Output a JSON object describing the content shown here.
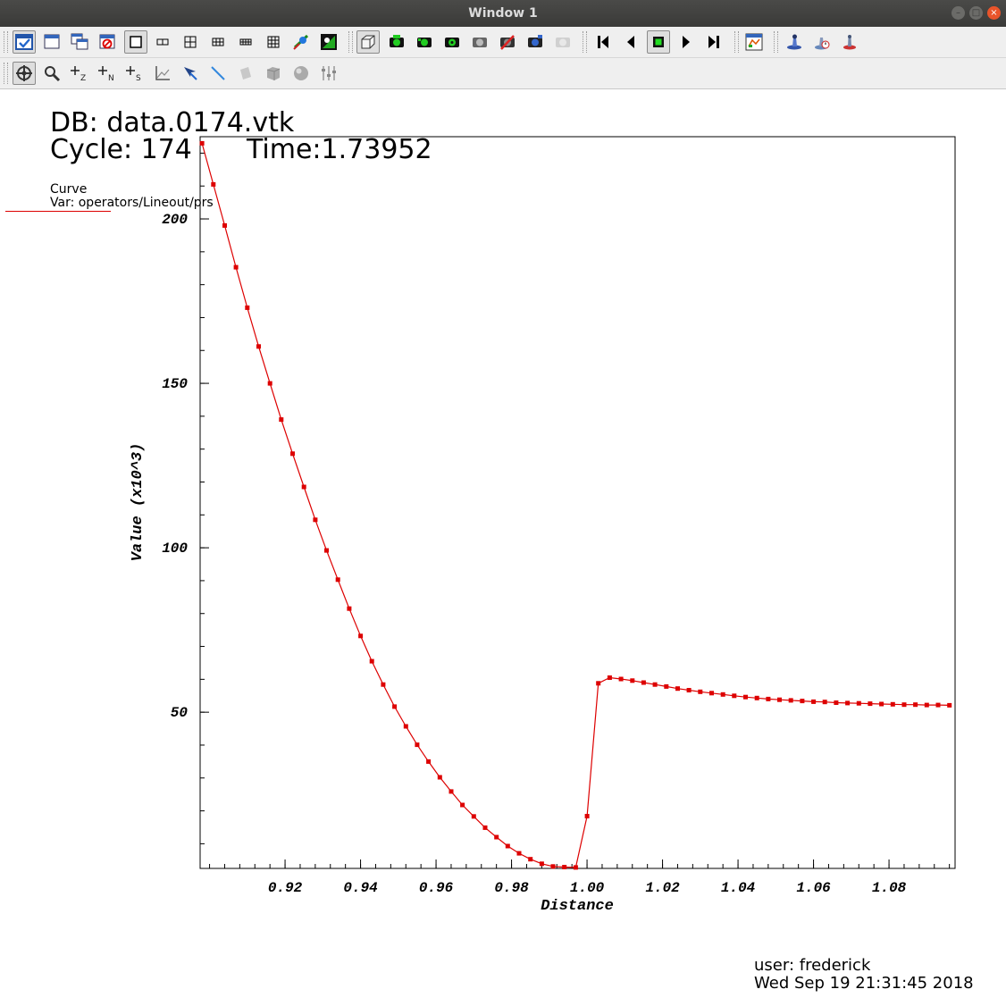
{
  "window": {
    "title": "Window 1"
  },
  "toolbar_row1": [
    "active-window-toggle-icon",
    "new-window-icon",
    "copy-window-icon",
    "clear-window-icon",
    "layout-1x1-icon",
    "layout-1x2-icon",
    "layout-2x2-icon",
    "layout-2x3-icon",
    "layout-2x4-icon",
    "layout-3x3-icon",
    "lock-view-icon",
    "lock-time-icon",
    "navigate-3d-icon",
    "camera-green-1-icon",
    "camera-green-2-icon",
    "camera-green-3-icon",
    "camera-grey-icon",
    "camera-red-icon",
    "camera-blue-icon",
    "camera-disabled-icon",
    "first-frame-icon",
    "previous-frame-icon",
    "stop-icon",
    "play-icon",
    "last-frame-icon",
    "color-table-icon",
    "light-source-icon",
    "clock-icon",
    "stack-icon"
  ],
  "toolbar_row2": [
    "navigate-icon",
    "zoom-icon",
    "pick-zone-icon",
    "pick-node-icon",
    "pick-spreadsheet-icon",
    "lineout-axes-icon",
    "pick-arrow-icon",
    "lineout-line-icon",
    "plane-tool-icon",
    "box-tool-icon",
    "sphere-tool-icon",
    "slider-tool-icon"
  ],
  "annotations": {
    "db_label": "DB: data.0174.vtk",
    "cycle_label": "Cycle: 174",
    "time_label": "Time:1.73952",
    "legend_title": "Curve",
    "legend_var": "Var: operators/Lineout/prs",
    "user_label": "user: frederick",
    "date_label": "Wed Sep 19 21:31:45 2018"
  },
  "chart_data": {
    "type": "line",
    "title": "",
    "xlabel": "Distance",
    "ylabel": "Value  (x10^3)",
    "xlim": [
      0.8975,
      1.0975
    ],
    "ylim": [
      2.5,
      225.0
    ],
    "xticks": [
      {
        "value": 0.92,
        "label": "0.92"
      },
      {
        "value": 0.94,
        "label": "0.94"
      },
      {
        "value": 0.96,
        "label": "0.96"
      },
      {
        "value": 0.98,
        "label": "0.98"
      },
      {
        "value": 1.0,
        "label": "1.00"
      },
      {
        "value": 1.02,
        "label": "1.02"
      },
      {
        "value": 1.04,
        "label": "1.04"
      },
      {
        "value": 1.06,
        "label": "1.06"
      },
      {
        "value": 1.08,
        "label": "1.08"
      }
    ],
    "yticks": [
      {
        "value": 50,
        "label": "50"
      },
      {
        "value": 100,
        "label": "100"
      },
      {
        "value": 150,
        "label": "150"
      },
      {
        "value": 200,
        "label": "200"
      }
    ],
    "grid": false,
    "legend": "top-left",
    "color": "#dd0000",
    "series": [
      {
        "x": [
          0.898,
          0.901,
          0.904,
          0.907,
          0.91,
          0.913,
          0.916,
          0.919,
          0.922,
          0.925,
          0.928,
          0.931,
          0.934,
          0.937,
          0.94,
          0.943,
          0.946,
          0.949,
          0.952,
          0.955,
          0.958,
          0.961,
          0.964,
          0.967,
          0.97,
          0.973,
          0.976,
          0.979,
          0.982,
          0.985,
          0.988,
          0.991,
          0.994,
          0.997,
          1.0,
          1.003,
          1.006,
          1.009,
          1.012,
          1.015,
          1.018,
          1.021,
          1.024,
          1.027,
          1.03,
          1.033,
          1.036,
          1.039,
          1.042,
          1.045,
          1.048,
          1.051,
          1.054,
          1.057,
          1.06,
          1.063,
          1.066,
          1.069,
          1.072,
          1.075,
          1.078,
          1.081,
          1.084,
          1.087,
          1.09,
          1.093,
          1.096
        ],
        "y": [
          223.0,
          210.5,
          198.0,
          185.3,
          173.0,
          161.2,
          150.0,
          139.0,
          128.6,
          118.5,
          108.5,
          99.2,
          90.3,
          81.5,
          73.2,
          65.5,
          58.4,
          51.7,
          45.7,
          40.1,
          35.0,
          30.2,
          25.9,
          21.8,
          18.3,
          14.9,
          12.0,
          9.3,
          7.1,
          5.3,
          3.9,
          3.1,
          2.9,
          2.8,
          18.4,
          58.8,
          60.5,
          60.1,
          59.6,
          59.0,
          58.4,
          57.8,
          57.2,
          56.7,
          56.2,
          55.8,
          55.4,
          55.0,
          54.6,
          54.3,
          54.0,
          53.8,
          53.6,
          53.4,
          53.2,
          53.1,
          52.9,
          52.8,
          52.7,
          52.6,
          52.5,
          52.4,
          52.3,
          52.3,
          52.2,
          52.2,
          52.1
        ]
      }
    ]
  }
}
